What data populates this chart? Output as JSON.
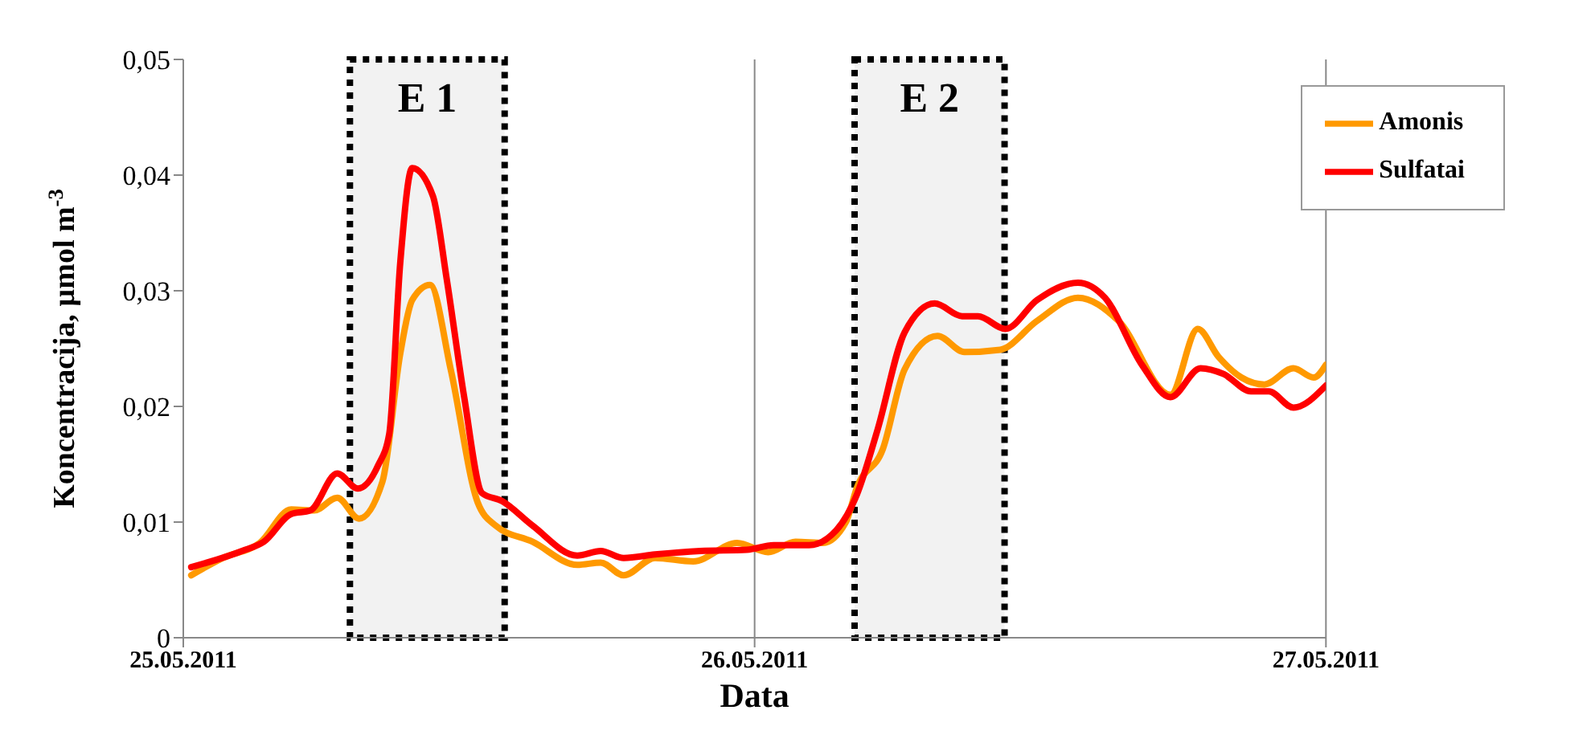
{
  "chart_data": {
    "type": "line",
    "xlabel": "Data",
    "ylabel": "Koncentracija, µmol m$^{-3}$",
    "xlim": [
      "2011-05-25",
      "2011-05-27"
    ],
    "xticks": [
      {
        "value": "2011-05-25",
        "label": "25.05.2011"
      },
      {
        "value": "2011-05-26",
        "label": "26.05.2011"
      },
      {
        "value": "2011-05-27",
        "label": "27.05.2011"
      }
    ],
    "ylim": [
      0,
      0.05
    ],
    "yticks": [
      0,
      {
        "value": 0.01,
        "label": "0,01"
      },
      {
        "value": 0.02,
        "label": "0,02"
      },
      {
        "value": 0.03,
        "label": "0,03"
      },
      {
        "value": 0.04,
        "label": "0,04"
      },
      {
        "value": 0.05,
        "label": "0,05"
      }
    ],
    "grid": "x",
    "legend": "top right",
    "marker": "none",
    "line_style": "solid",
    "bands": [
      {
        "axis": "x",
        "from": "2011-05-25T07:00",
        "to": "2011-05-25T13:30",
        "label": "E 1",
        "color": "#000000"
      },
      {
        "axis": "x",
        "from": "2011-05-26T04:12",
        "to": "2011-05-26T10:30",
        "label": "E 2",
        "color": "#000000"
      }
    ],
    "series": [
      {
        "name": "Amonis",
        "color": "#ff9900",
        "x": [
          "2011-05-25T00:20",
          "2011-05-25T01:40",
          "2011-05-25T03:13",
          "2011-05-25T04:32",
          "2011-05-25T05:30",
          "2011-05-25T06:28",
          "2011-05-25T07:23",
          "2011-05-25T08:22",
          "2011-05-25T09:07",
          "2011-05-25T09:37",
          "2011-05-25T10:22",
          "2011-05-25T11:14",
          "2011-05-25T12:22",
          "2011-05-25T13:07",
          "2011-05-25T14:40",
          "2011-05-25T16:33",
          "2011-05-25T17:32",
          "2011-05-25T18:30",
          "2011-05-25T19:49",
          "2011-05-25T21:25",
          "2011-05-25T23:16",
          "2011-05-26T00:34",
          "2011-05-26T01:43",
          "2011-05-26T02:52",
          "2011-05-26T03:50",
          "2011-05-26T04:18",
          "2011-05-26T05:23",
          "2011-05-26T06:18",
          "2011-05-26T07:41",
          "2011-05-26T08:49",
          "2011-05-26T10:19",
          "2011-05-26T11:52",
          "2011-05-26T13:35",
          "2011-05-26T15:17",
          "2011-05-26T17:28",
          "2011-05-26T18:37",
          "2011-05-26T19:29",
          "2011-05-26T20:27",
          "2011-05-26T21:25",
          "2011-05-26T22:38",
          "2011-05-26T23:29",
          "2011-05-27T00:00"
        ],
        "values": [
          0.0054,
          0.0069,
          0.0082,
          0.0111,
          0.011,
          0.0121,
          0.0103,
          0.0135,
          0.0246,
          0.0292,
          0.0305,
          0.0232,
          0.0117,
          0.0097,
          0.0083,
          0.0063,
          0.0065,
          0.0054,
          0.0069,
          0.0066,
          0.0082,
          0.0074,
          0.0083,
          0.0082,
          0.01,
          0.013,
          0.0163,
          0.0232,
          0.0261,
          0.0247,
          0.0249,
          0.0274,
          0.0294,
          0.0274,
          0.021,
          0.0267,
          0.0243,
          0.0225,
          0.0219,
          0.0233,
          0.0225,
          0.0236
        ]
      },
      {
        "name": "Sulfatai",
        "color": "#ff0000",
        "x": [
          "2011-05-25T00:20",
          "2011-05-25T02:28",
          "2011-05-25T03:23",
          "2011-05-25T04:32",
          "2011-05-25T05:20",
          "2011-05-25T06:28",
          "2011-05-25T07:20",
          "2011-05-25T08:11",
          "2011-05-25T08:39",
          "2011-05-25T09:07",
          "2011-05-25T09:37",
          "2011-05-25T10:29",
          "2011-05-25T11:04",
          "2011-05-25T11:48",
          "2011-05-25T12:33",
          "2011-05-25T13:24",
          "2011-05-25T14:40",
          "2011-05-25T16:33",
          "2011-05-25T17:32",
          "2011-05-25T18:30",
          "2011-05-25T19:49",
          "2011-05-25T21:43",
          "2011-05-25T23:40",
          "2011-05-26T00:48",
          "2011-05-26T02:17",
          "2011-05-26T03:26",
          "2011-05-26T04:18",
          "2011-05-26T05:10",
          "2011-05-26T06:18",
          "2011-05-26T07:34",
          "2011-05-26T08:43",
          "2011-05-26T09:23",
          "2011-05-26T10:32",
          "2011-05-26T11:52",
          "2011-05-26T13:35",
          "2011-05-26T14:43",
          "2011-05-26T16:16",
          "2011-05-26T17:28",
          "2011-05-26T18:44",
          "2011-05-26T19:42",
          "2011-05-26T20:51",
          "2011-05-26T21:36",
          "2011-05-26T22:38",
          "2011-05-27T00:00"
        ],
        "values": [
          0.0061,
          0.0075,
          0.0083,
          0.0107,
          0.011,
          0.0142,
          0.0129,
          0.0149,
          0.0176,
          0.0325,
          0.0406,
          0.0382,
          0.031,
          0.0208,
          0.0125,
          0.0118,
          0.0097,
          0.0071,
          0.0075,
          0.0069,
          0.0072,
          0.0075,
          0.0076,
          0.008,
          0.008,
          0.0093,
          0.0124,
          0.018,
          0.0264,
          0.0289,
          0.0278,
          0.0278,
          0.0267,
          0.0292,
          0.0307,
          0.0294,
          0.0236,
          0.0208,
          0.0233,
          0.0228,
          0.0213,
          0.0213,
          0.0199,
          0.0218
        ]
      }
    ]
  }
}
